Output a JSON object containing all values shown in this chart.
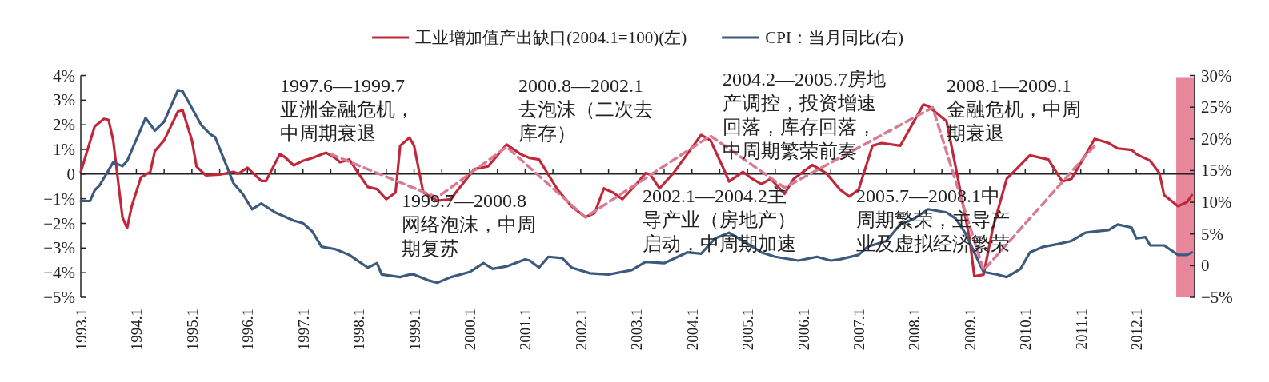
{
  "chart_data": {
    "type": "line",
    "legend": "top",
    "xlim": [
      "1993-01",
      "2013-01-19"
    ],
    "xticks": [
      {
        "value": "1993-01",
        "label": "1993.1"
      },
      {
        "value": "1993-07",
        "label": null
      },
      {
        "value": "1994-01",
        "label": "1994.1"
      },
      {
        "value": "1994-07",
        "label": null
      },
      {
        "value": "1995-01",
        "label": "1995.1"
      },
      {
        "value": "1995-07",
        "label": null
      },
      {
        "value": "1996-01",
        "label": "1996.1"
      },
      {
        "value": "1996-07",
        "label": null
      },
      {
        "value": "1997-01",
        "label": "1997.1"
      },
      {
        "value": "1997-07",
        "label": null
      },
      {
        "value": "1998-01",
        "label": "1998.1"
      },
      {
        "value": "1998-07",
        "label": null
      },
      {
        "value": "1999-01",
        "label": "1999.1"
      },
      {
        "value": "1999-07",
        "label": null
      },
      {
        "value": "2000-01",
        "label": "2000.1"
      },
      {
        "value": "2000-07",
        "label": null
      },
      {
        "value": "2001-01",
        "label": "2001.1"
      },
      {
        "value": "2001-07",
        "label": null
      },
      {
        "value": "2002-01",
        "label": "2002.1"
      },
      {
        "value": "2002-07",
        "label": null
      },
      {
        "value": "2003-01",
        "label": "2003.1"
      },
      {
        "value": "2003-07",
        "label": null
      },
      {
        "value": "2004-01",
        "label": "2004.1"
      },
      {
        "value": "2004-07",
        "label": null
      },
      {
        "value": "2005-01",
        "label": "2005.1"
      },
      {
        "value": "2005-07",
        "label": null
      },
      {
        "value": "2006-01",
        "label": "2006.1"
      },
      {
        "value": "2006-07",
        "label": null
      },
      {
        "value": "2007-01",
        "label": "2007.1"
      },
      {
        "value": "2007-07",
        "label": null
      },
      {
        "value": "2008-01",
        "label": "2008.1"
      },
      {
        "value": "2008-07",
        "label": null
      },
      {
        "value": "2009-01",
        "label": "2009.1"
      },
      {
        "value": "2009-07",
        "label": null
      },
      {
        "value": "2010-01",
        "label": "2010.1"
      },
      {
        "value": "2010-07",
        "label": null
      },
      {
        "value": "2011-01",
        "label": "2011.1"
      },
      {
        "value": "2011-07",
        "label": null
      },
      {
        "value": "2012-01",
        "label": "2012.1"
      },
      {
        "value": "2012-07",
        "label": null
      }
    ],
    "ylim": [
      -5,
      4
    ],
    "yticks": [
      {
        "value": -5,
        "label": "−5%"
      },
      {
        "value": -4,
        "label": "−4%"
      },
      {
        "value": -3,
        "label": "−3%"
      },
      {
        "value": -2,
        "label": "−2%"
      },
      {
        "value": -1,
        "label": "−1%"
      },
      0,
      {
        "value": 1,
        "label": "1%"
      },
      {
        "value": 2,
        "label": "2%"
      },
      {
        "value": 3,
        "label": "3%"
      },
      {
        "value": 4,
        "label": "4%"
      }
    ],
    "y2lim": [
      -5,
      30
    ],
    "y2ticks": [
      {
        "value": -5,
        "label": "−5%"
      },
      0,
      {
        "value": 5,
        "label": "5%"
      },
      {
        "value": 10,
        "label": "10%"
      },
      {
        "value": 15,
        "label": "15%"
      },
      {
        "value": 20,
        "label": "20%"
      },
      {
        "value": 25,
        "label": "25%"
      },
      {
        "value": 30,
        "label": "30%"
      }
    ],
    "bands": [
      {
        "axis": "x",
        "from": "2012-09-20",
        "to": "2013-01-19",
        "color": "#e8879c"
      }
    ],
    "series": [
      {
        "name": "工业增加值产出缺口(2004.1=100)(左)",
        "color": "#c0283a",
        "line_style": "solid",
        "x": [
          "1993-01",
          "1993-04",
          "1993-06",
          "1993-07",
          "1993-08",
          "1993-10",
          "1993-11",
          "1993-12",
          "1994-02",
          "1994-04",
          "1994-05",
          "1994-07",
          "1994-10",
          "1994-11",
          "1995-01",
          "1995-02",
          "1995-04",
          "1995-07",
          "1995-10",
          "1995-11",
          "1996-01",
          "1996-04",
          "1996-05",
          "1996-08",
          "1996-09",
          "1996-11",
          "1997-01",
          "1997-03",
          "1997-06",
          "1997-08",
          "1997-09",
          "1997-11",
          "1998-02",
          "1998-03",
          "1998-05",
          "1998-07",
          "1998-09",
          "1998-10",
          "1998-12",
          "1999-01",
          "1999-03",
          "1999-06",
          "1999-09",
          "1999-10",
          "2000-02",
          "2000-05",
          "2000-09",
          "2000-12",
          "2001-02",
          "2001-04",
          "2001-08",
          "2001-11",
          "2002-02",
          "2002-04",
          "2002-06",
          "2002-08",
          "2002-10",
          "2003-01",
          "2003-03",
          "2003-04",
          "2003-06",
          "2003-09",
          "2003-12",
          "2004-03",
          "2004-05",
          "2004-08",
          "2004-09",
          "2004-12",
          "2005-02",
          "2005-04",
          "2005-06",
          "2005-09",
          "2005-11",
          "2006-03",
          "2006-06",
          "2006-09",
          "2006-11",
          "2007-01",
          "2007-04",
          "2007-06",
          "2007-10",
          "2007-11",
          "2008-03",
          "2008-04",
          "2008-08",
          "2008-10",
          "2009-01",
          "2009-02",
          "2009-04",
          "2009-06",
          "2009-09",
          "2010-02",
          "2010-06",
          "2010-09",
          "2010-11",
          "2011-02",
          "2011-04",
          "2011-07",
          "2011-09",
          "2011-12",
          "2012-01",
          "2012-04",
          "2012-06",
          "2012-07",
          "2012-10",
          "2012-12",
          "2013-01"
        ],
        "values": [
          0.09,
          1.93,
          2.24,
          2.2,
          1.37,
          -1.75,
          -2.19,
          -1.3,
          -0.13,
          0.09,
          0.93,
          1.37,
          2.54,
          2.59,
          1.37,
          0.31,
          -0.05,
          -0.02,
          0.09,
          0.01,
          0.26,
          -0.28,
          -0.28,
          0.81,
          0.7,
          0.35,
          0.54,
          0.65,
          0.87,
          0.65,
          0.48,
          0.59,
          -0.25,
          -0.52,
          -0.61,
          -1.02,
          -0.75,
          1.15,
          1.48,
          1.15,
          -0.75,
          -1.08,
          -1.02,
          -0.75,
          0.2,
          0.31,
          1.2,
          0.81,
          0.65,
          0.59,
          -0.63,
          -1.3,
          -1.75,
          -1.58,
          -0.58,
          -0.75,
          -1.02,
          -0.41,
          0.04,
          -0.02,
          -0.58,
          0.04,
          0.81,
          1.59,
          1.37,
          0.15,
          -0.3,
          0.09,
          -0.19,
          -0.41,
          -0.19,
          -0.8,
          -0.19,
          0.37,
          0.04,
          -0.63,
          -0.91,
          -0.63,
          1.15,
          1.26,
          1.15,
          1.48,
          2.82,
          2.76,
          2.14,
          0.26,
          -2.64,
          -4.14,
          -4.08,
          -2.19,
          -0.19,
          0.76,
          0.59,
          -0.3,
          -0.19,
          0.76,
          1.43,
          1.26,
          1.04,
          0.98,
          0.81,
          0.54,
          0.04,
          -0.85,
          -1.3,
          -1.13,
          -0.85
        ]
      },
      {
        "name": "CPI：当月同比(右)",
        "color": "#3c5a7d",
        "line_style": "solid",
        "axis": "y2",
        "x": [
          "1993-01",
          "1993-03",
          "1993-04",
          "1993-05",
          "1993-08",
          "1993-10",
          "1993-11",
          "1994-03",
          "1994-05",
          "1994-07",
          "1994-10",
          "1994-11",
          "1995-03",
          "1995-05",
          "1995-06",
          "1995-10",
          "1995-12",
          "1996-02",
          "1996-04",
          "1996-07",
          "1996-11",
          "1997-01",
          "1997-03",
          "1997-05",
          "1997-08",
          "1997-11",
          "1997-12",
          "1998-03",
          "1998-05",
          "1998-06",
          "1998-10",
          "1998-12",
          "1999-01",
          "1999-04",
          "1999-06",
          "1999-09",
          "2000-01",
          "2000-04",
          "2000-06",
          "2000-09",
          "2001-01",
          "2001-02",
          "2001-04",
          "2001-06",
          "2001-09",
          "2001-11",
          "2002-03",
          "2002-07",
          "2002-12",
          "2003-03",
          "2003-07",
          "2003-12",
          "2004-03",
          "2004-06",
          "2004-09",
          "2004-12",
          "2005-04",
          "2005-07",
          "2005-12",
          "2006-04",
          "2006-07",
          "2006-09",
          "2007-01",
          "2007-03",
          "2007-07",
          "2007-10",
          "2008-01",
          "2008-04",
          "2008-08",
          "2008-10",
          "2008-12",
          "2009-02",
          "2009-04",
          "2009-07",
          "2009-09",
          "2009-12",
          "2010-02",
          "2010-05",
          "2010-08",
          "2010-11",
          "2011-02",
          "2011-04",
          "2011-07",
          "2011-09",
          "2011-12",
          "2012-01",
          "2012-03",
          "2012-04",
          "2012-07",
          "2012-10",
          "2012-12",
          "2013-01"
        ],
        "values": [
          10.2,
          10.2,
          11.9,
          12.6,
          16.3,
          15.7,
          16.5,
          23.3,
          21.3,
          22.7,
          27.7,
          27.5,
          22.2,
          20.7,
          20.3,
          13.0,
          11.3,
          8.9,
          9.8,
          8.4,
          7.1,
          6.7,
          5.4,
          3.0,
          2.6,
          1.7,
          1.2,
          -0.3,
          0.4,
          -1.4,
          -1.8,
          -1.4,
          -1.4,
          -2.3,
          -2.7,
          -1.8,
          -1.0,
          0.4,
          -0.5,
          -0.1,
          1.0,
          0.8,
          -0.3,
          1.4,
          1.2,
          -0.3,
          -1.2,
          -1.4,
          -0.7,
          0.6,
          0.4,
          2.1,
          1.9,
          4.3,
          5.2,
          3.9,
          2.1,
          1.4,
          0.8,
          1.4,
          0.8,
          1.0,
          1.7,
          3.0,
          3.9,
          6.5,
          7.4,
          8.9,
          8.4,
          7.4,
          5.2,
          2.1,
          -1.0,
          -1.4,
          -1.8,
          -0.5,
          2.1,
          3.0,
          3.4,
          3.9,
          5.2,
          5.4,
          5.6,
          6.5,
          6.0,
          4.3,
          4.5,
          3.2,
          3.2,
          1.7,
          1.7,
          2.1
        ]
      },
      {
        "color": "#d87a93",
        "line_style": "dashed",
        "x": [
          "1997-07",
          "1999-06",
          "2000-09",
          "2002-02",
          "2004-05",
          "2005-09",
          "2008-05",
          "2009-04",
          "2011-04"
        ],
        "values": [
          0.81,
          -0.95,
          1.1,
          -1.75,
          1.55,
          -0.55,
          2.7,
          -3.9,
          1.15
        ]
      }
    ],
    "annotations": [
      "1997.6—1999.7亚洲金融危机，中周期衰退",
      "1999.7—2000.8网络泡沫，中周期复苏",
      "2000.8—2002.1去泡沫（二次去库存）",
      "2002.1—2004.2主导产业（房地产）启动，中周期加速",
      "2004.2—2005.7房地产调控，投资增速回落，库存回落，中周期繁荣前奏",
      "2005.7—2008.1中周期繁荣，主导产业及虚拟经济繁荣",
      "2008.1—2009.1金融危机，中周期衰退"
    ]
  }
}
